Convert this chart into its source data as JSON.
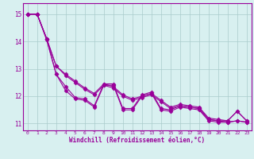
{
  "x": [
    0,
    1,
    2,
    3,
    4,
    5,
    6,
    7,
    8,
    9,
    10,
    11,
    12,
    13,
    14,
    15,
    16,
    17,
    18,
    19,
    20,
    21,
    22,
    23
  ],
  "series": [
    [
      15.0,
      15.0,
      14.1,
      13.1,
      12.8,
      12.55,
      12.3,
      12.1,
      12.45,
      12.35,
      12.05,
      11.9,
      12.0,
      12.1,
      11.85,
      11.6,
      11.7,
      11.65,
      11.6,
      11.2,
      11.15,
      11.1,
      11.45,
      11.1
    ],
    [
      15.0,
      15.0,
      14.1,
      13.1,
      12.75,
      12.5,
      12.25,
      12.05,
      12.4,
      12.3,
      12.0,
      11.85,
      11.95,
      12.05,
      11.8,
      11.55,
      11.65,
      11.6,
      11.55,
      11.15,
      11.1,
      11.05,
      11.1,
      11.05
    ],
    [
      15.0,
      15.0,
      14.1,
      12.8,
      12.35,
      11.95,
      11.9,
      11.65,
      12.45,
      12.45,
      11.55,
      11.55,
      12.05,
      12.15,
      11.55,
      11.5,
      11.65,
      11.6,
      11.55,
      11.15,
      11.1,
      11.1,
      11.45,
      11.1
    ],
    [
      15.0,
      15.0,
      14.05,
      12.8,
      12.2,
      11.9,
      11.85,
      11.6,
      12.4,
      12.4,
      11.5,
      11.5,
      12.0,
      12.1,
      11.5,
      11.45,
      11.6,
      11.55,
      11.5,
      11.1,
      11.05,
      11.05,
      11.1,
      11.05
    ]
  ],
  "line_color": "#990099",
  "marker": "D",
  "markersize": 2.5,
  "linewidth": 0.8,
  "background_color": "#d8f0f0",
  "grid_color": "#aacccc",
  "xlabel": "Windchill (Refroidissement éolien,°C)",
  "ylabel_ticks": [
    11,
    12,
    13,
    14,
    15
  ],
  "xlim": [
    -0.5,
    23.5
  ],
  "ylim": [
    10.75,
    15.4
  ],
  "xtick_labels": [
    "0",
    "1",
    "2",
    "3",
    "4",
    "5",
    "6",
    "7",
    "8",
    "9",
    "10",
    "11",
    "12",
    "13",
    "14",
    "15",
    "16",
    "17",
    "18",
    "19",
    "20",
    "21",
    "22",
    "23"
  ]
}
